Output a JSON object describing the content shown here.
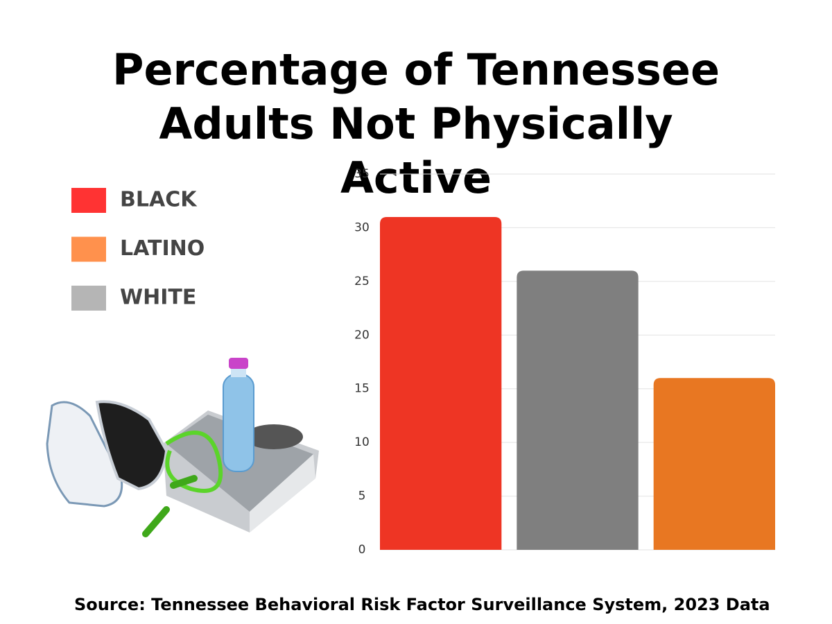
{
  "chart_data": {
    "type": "bar",
    "title": "Percentage of Tennessee Adults Not Physically Active",
    "categories": [
      null,
      null,
      null
    ],
    "values": [
      31,
      26,
      16
    ],
    "colors": [
      "#ee3524",
      "#7f7f7f",
      "#e87722"
    ],
    "legend": [
      {
        "name": "BLACK",
        "color": "#ff3333"
      },
      {
        "name": "LATINO",
        "color": "#ff914d"
      },
      {
        "name": "WHITE",
        "color": "#b5b5b5"
      }
    ],
    "ylim": [
      0,
      35
    ],
    "yticks": [
      0,
      5,
      10,
      15,
      20,
      25,
      30,
      35
    ],
    "grid": true,
    "source": "Source: Tennessee Behavioral Risk Factor Surveillance System, 2023 Data"
  }
}
